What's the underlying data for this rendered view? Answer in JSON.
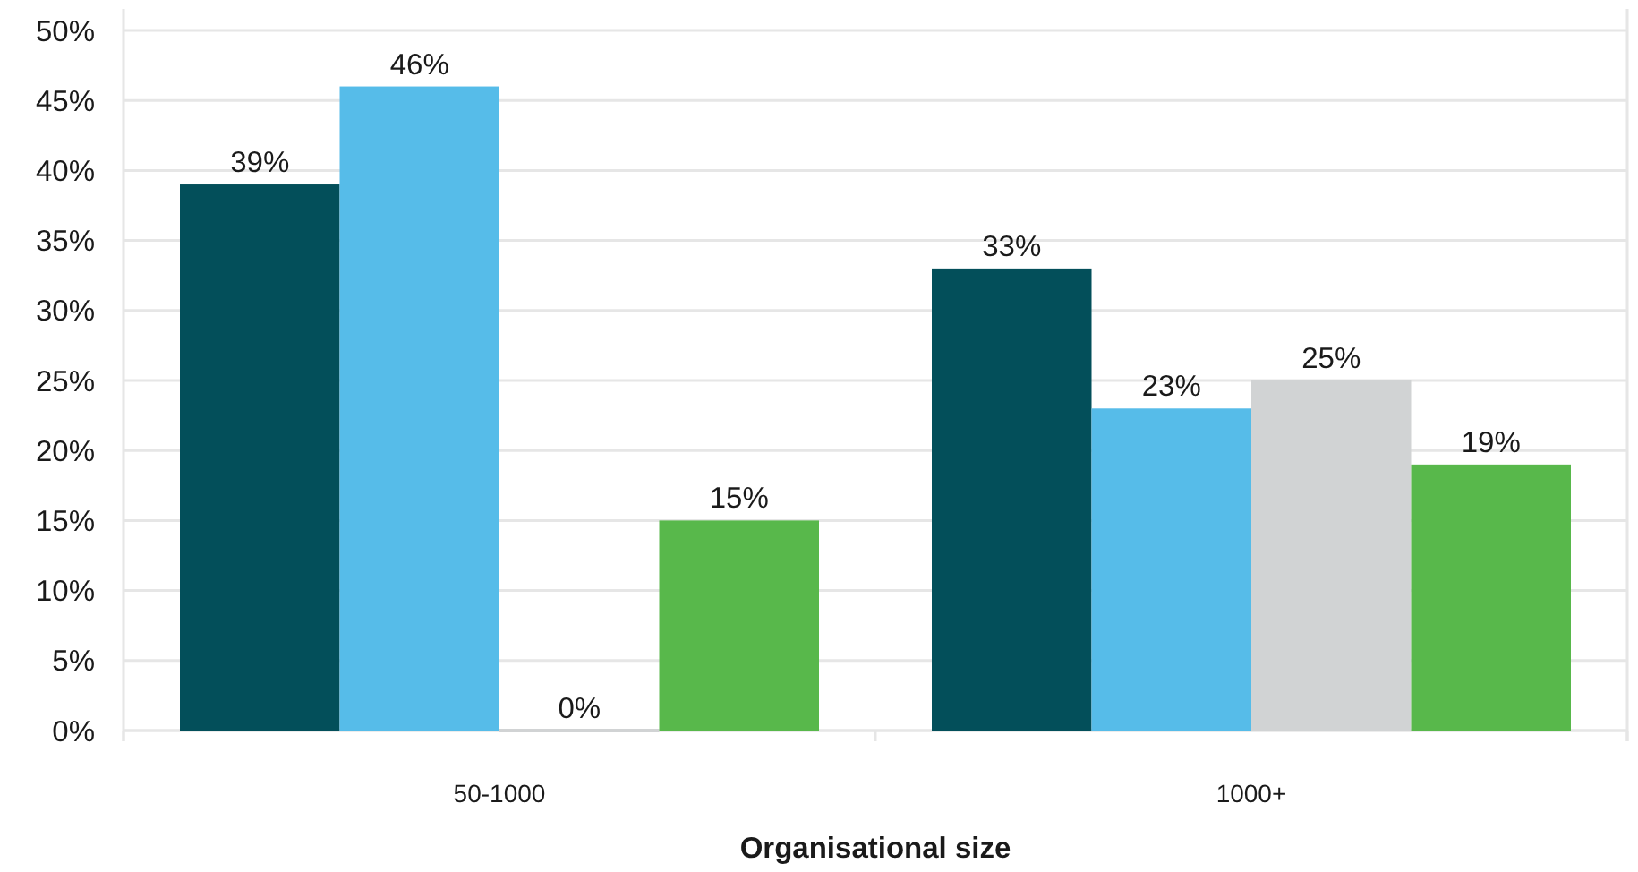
{
  "chart_data": {
    "type": "bar",
    "xlabel": "Organisational size",
    "categories": [
      "50-1000",
      "1000+"
    ],
    "series": [
      {
        "color": "#034f5a",
        "values": [
          39,
          33
        ],
        "value_labels": [
          "39%",
          "33%"
        ]
      },
      {
        "color": "#56bce9",
        "values": [
          46,
          23
        ],
        "value_labels": [
          "46%",
          "23%"
        ]
      },
      {
        "color": "#d1d3d4",
        "values": [
          0,
          25
        ],
        "value_labels": [
          "0%",
          "25%"
        ]
      },
      {
        "color": "#58b84b",
        "values": [
          15,
          19
        ],
        "value_labels": [
          "15%",
          "19%"
        ]
      }
    ],
    "ylim": [
      0,
      50
    ],
    "yticks": [
      {
        "value": 0,
        "label": "0%"
      },
      {
        "value": 5,
        "label": "5%"
      },
      {
        "value": 10,
        "label": "10%"
      },
      {
        "value": 15,
        "label": "15%"
      },
      {
        "value": 20,
        "label": "20%"
      },
      {
        "value": 25,
        "label": "25%"
      },
      {
        "value": 30,
        "label": "30%"
      },
      {
        "value": 35,
        "label": "35%"
      },
      {
        "value": 40,
        "label": "40%"
      },
      {
        "value": 45,
        "label": "45%"
      },
      {
        "value": 50,
        "label": "50%"
      }
    ],
    "grid": "y"
  }
}
